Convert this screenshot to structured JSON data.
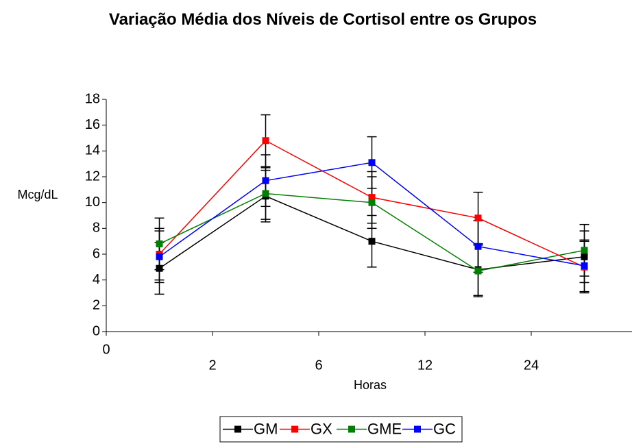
{
  "chart_data": {
    "type": "line",
    "title": "Variação Média dos Níveis de Cortisol entre os Grupos",
    "ylabel": "Mcg/dL",
    "xlabel": "Horas",
    "categories": [
      null,
      null,
      null,
      null,
      null
    ],
    "xticks": [
      0,
      2,
      6,
      12,
      24
    ],
    "ylim": [
      0,
      18
    ],
    "yticks": [
      0,
      2,
      4,
      6,
      8,
      10,
      12,
      14,
      16,
      18
    ],
    "grid": false,
    "legend": "bottom",
    "series": [
      {
        "name": "GM",
        "color": "#000000",
        "values": [
          4.9,
          10.5,
          7.0,
          4.8,
          5.8
        ],
        "errors": [
          2,
          2,
          2,
          2,
          2
        ]
      },
      {
        "name": "GX",
        "color": "#ff0000",
        "values": [
          6.0,
          14.8,
          10.4,
          8.8,
          5.0
        ],
        "errors": [
          2,
          2,
          2,
          2,
          2
        ]
      },
      {
        "name": "GME",
        "color": "#008000",
        "values": [
          6.8,
          10.7,
          10.0,
          4.7,
          6.3
        ],
        "errors": [
          2,
          2,
          2,
          2,
          2
        ]
      },
      {
        "name": "GC",
        "color": "#0000ff",
        "values": [
          5.8,
          11.7,
          13.1,
          6.6,
          5.1
        ],
        "errors": [
          2,
          2,
          2,
          2,
          2
        ]
      }
    ]
  }
}
